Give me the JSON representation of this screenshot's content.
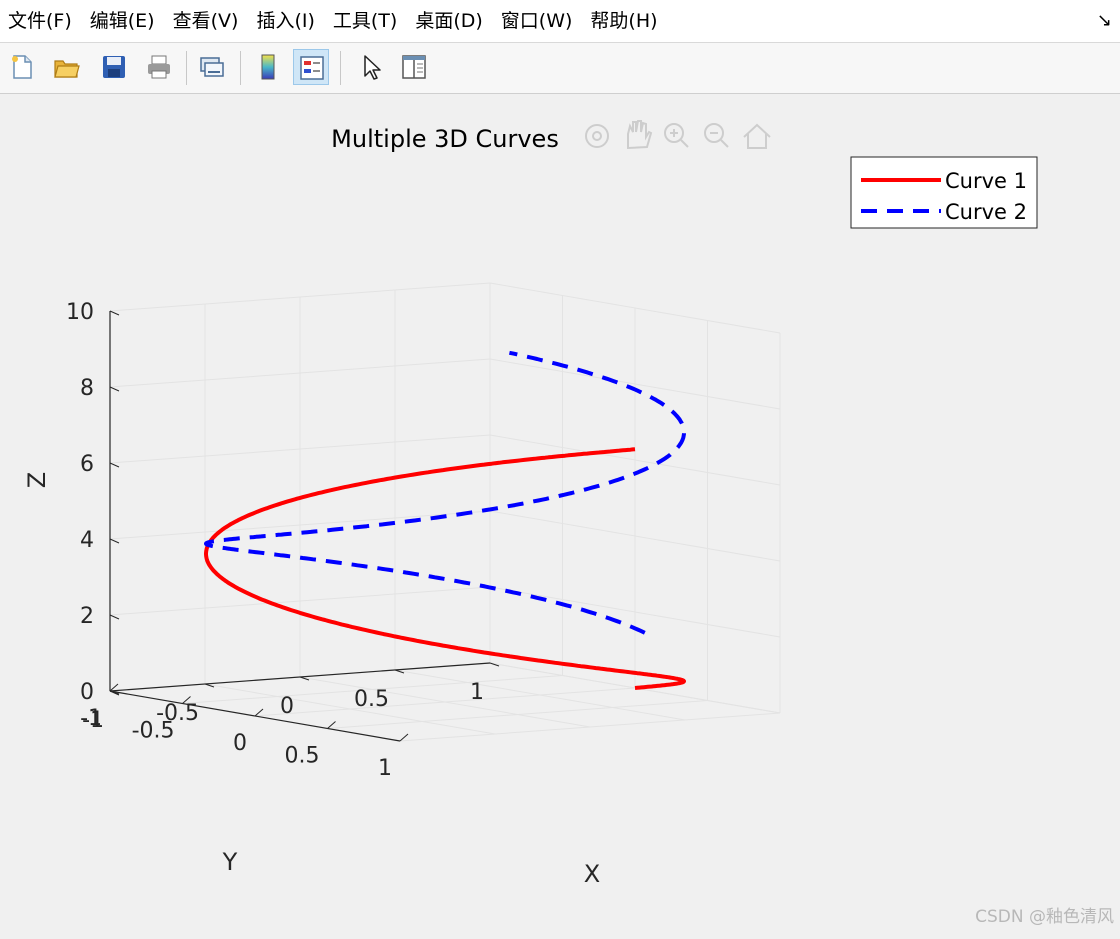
{
  "menu": {
    "items": [
      "文件(F)",
      "编辑(E)",
      "查看(V)",
      "插入(I)",
      "工具(T)",
      "桌面(D)",
      "窗口(W)",
      "帮助(H)"
    ],
    "corner_icon": "dock-arrow-icon"
  },
  "toolbar": {
    "buttons": [
      {
        "icon": "new-figure-icon",
        "active": false
      },
      {
        "icon": "open-file-icon",
        "active": false
      },
      {
        "icon": "save-icon",
        "active": false
      },
      {
        "icon": "print-icon",
        "active": false
      },
      {
        "icon": "link-plot-icon",
        "active": false
      },
      {
        "icon": "colorbar-icon",
        "active": false
      },
      {
        "icon": "legend-icon",
        "active": true
      },
      {
        "icon": "edit-plot-pointer-icon",
        "active": false
      },
      {
        "icon": "property-inspector-icon",
        "active": false
      }
    ]
  },
  "axes_toolbar_icons": [
    "rotate-icon",
    "pan-icon",
    "zoom-in-icon",
    "zoom-out-icon",
    "home-icon"
  ],
  "watermark": "CSDN @釉色清风",
  "chart_data": {
    "type": "line3d",
    "title": "Multiple 3D Curves",
    "xlabel": "X",
    "ylabel": "Y",
    "zlabel": "Z",
    "xlim": [
      -1,
      1
    ],
    "ylim": [
      -1,
      1
    ],
    "zlim": [
      0,
      10
    ],
    "xticks": [
      "-1",
      "-0.5",
      "0",
      "0.5",
      "1"
    ],
    "yticks": [
      "-1",
      "-0.5",
      "0",
      "0.5",
      "1"
    ],
    "zticks": [
      "0",
      "2",
      "4",
      "6",
      "8",
      "10"
    ],
    "grid": true,
    "view": {
      "azimuth": -37.5,
      "elevation": 30
    },
    "legend_position": "top-right",
    "series": [
      {
        "name": "Curve 1",
        "x": "sin(t)",
        "y": "cos(t)",
        "z": "t",
        "t_range": [
          0,
          6.2832
        ],
        "color": "#ff0000",
        "style": "solid"
      },
      {
        "name": "Curve 2",
        "x": "cos(t)",
        "y": "sin(t)",
        "z": "t",
        "t_range": [
          1.5,
          8.5
        ],
        "color": "#0000ff",
        "style": "dashed"
      }
    ]
  }
}
